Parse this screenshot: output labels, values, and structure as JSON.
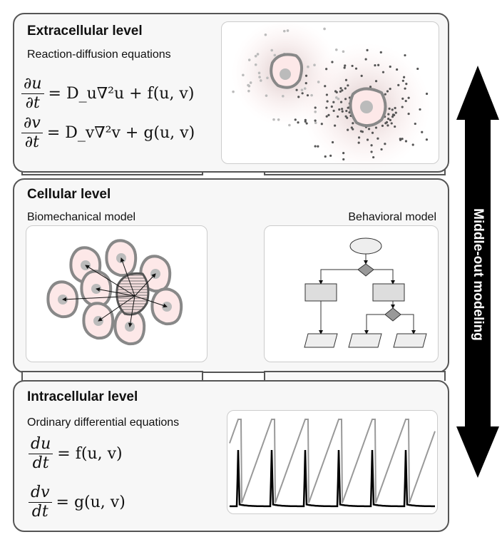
{
  "extracellular": {
    "title": "Extracellular level",
    "subtitle": "Reaction-diffusion equations",
    "eq1": {
      "num": "∂u",
      "den": "∂t",
      "rhs": "= D_u∇²u + f(u, v)"
    },
    "eq2": {
      "num": "∂v",
      "den": "∂t",
      "rhs": "= D_v∇²v + g(u, v)"
    }
  },
  "cellular": {
    "title": "Cellular level",
    "left_label": "Biomechanical model",
    "right_label": "Behavioral model"
  },
  "intracellular": {
    "title": "Intracellular level",
    "subtitle": "Ordinary differential equations",
    "eq1": {
      "num": "du",
      "den": "dt",
      "rhs": "= f(u, v)"
    },
    "eq2": {
      "num": "dv",
      "den": "dt",
      "rhs": "= g(u, v)"
    }
  },
  "arrow": {
    "label": "Middle-out modeling"
  },
  "colors": {
    "panel_border": "#555555",
    "cell_fill": "#fde8e8",
    "cell_border": "#888888",
    "arrow": "#000000"
  }
}
